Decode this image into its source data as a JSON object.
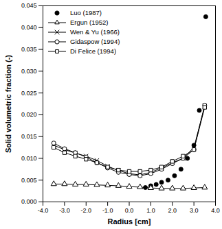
{
  "chart_data": {
    "type": "line",
    "x_label": "Radius [cm]",
    "y_label": "Solid volumetric fraction (-)",
    "xlim": [
      -4.0,
      4.0
    ],
    "xticks": [
      {
        "value": -4,
        "label": "-4.0"
      },
      {
        "value": -3,
        "label": "-3.0"
      },
      {
        "value": -2,
        "label": "-2.0"
      },
      {
        "value": -1,
        "label": "-1.0"
      },
      {
        "value": 0,
        "label": "0.0"
      },
      {
        "value": 1,
        "label": "1.0"
      },
      {
        "value": 2,
        "label": "2.0"
      },
      {
        "value": 3,
        "label": "3.0"
      },
      {
        "value": 4,
        "label": "4.0"
      }
    ],
    "ylim": [
      0,
      0.045
    ],
    "yticks": [
      {
        "value": 0,
        "label": "0.000"
      },
      0.005,
      {
        "value": 0.01,
        "label": "0.010"
      },
      0.015,
      {
        "value": 0.02,
        "label": "0.020"
      },
      0.025,
      {
        "value": 0.03,
        "label": "0.030"
      },
      0.035,
      {
        "value": 0.04,
        "label": "0.040"
      },
      0.045
    ],
    "legend": "upper left",
    "grid": false,
    "series": [
      {
        "name": "Luo (1987)",
        "type": "scatter",
        "color": "#000000",
        "marker": "filled_circle",
        "line_style": "none",
        "x": [
          0.75,
          1.0,
          1.25,
          1.5,
          1.8,
          2.1,
          2.4,
          2.7,
          3.0,
          3.25,
          3.55
        ],
        "values": [
          0.0033,
          0.0037,
          0.004,
          0.0045,
          0.005,
          0.006,
          0.0075,
          0.01,
          0.013,
          0.021,
          0.0425
        ]
      },
      {
        "name": "Ergun (1952)",
        "type": "line",
        "color": "#000000",
        "marker": "open_triangle",
        "line_style": "solid",
        "x": [
          -3.5,
          -3.0,
          -2.5,
          -2.0,
          -1.5,
          -1.0,
          -0.5,
          0.0,
          0.5,
          1.0,
          1.5,
          2.0,
          2.5,
          3.0,
          3.5
        ],
        "values": [
          0.0041,
          0.0041,
          0.004,
          0.004,
          0.0039,
          0.0038,
          0.0037,
          0.0035,
          0.0034,
          0.0032,
          0.0031,
          0.0031,
          0.0031,
          0.0032,
          0.0033
        ]
      },
      {
        "name": "Wen & Yu (1966)",
        "type": "line",
        "color": "#000000",
        "marker": "cross",
        "line_style": "solid",
        "x": [
          -3.5,
          -3.0,
          -2.5,
          -2.0,
          -1.5,
          -1.0,
          -0.5,
          0.0,
          0.5,
          1.0,
          1.5,
          2.0,
          2.5,
          3.0,
          3.5
        ],
        "values": [
          0.013,
          0.012,
          0.0112,
          0.0105,
          0.0095,
          0.0082,
          0.0072,
          0.0065,
          0.0062,
          0.0068,
          0.0078,
          0.009,
          0.01,
          0.0125,
          0.022
        ]
      },
      {
        "name": "Gidaspow (1994)",
        "type": "line",
        "color": "#000000",
        "marker": "open_circle",
        "line_style": "solid",
        "x": [
          -3.5,
          -3.0,
          -2.5,
          -2.0,
          -1.5,
          -1.0,
          -0.5,
          0.0,
          0.5,
          1.0,
          1.5,
          2.0,
          2.5,
          3.0,
          3.5
        ],
        "values": [
          0.0135,
          0.0122,
          0.0113,
          0.0103,
          0.009,
          0.0078,
          0.0068,
          0.0063,
          0.006,
          0.0065,
          0.0075,
          0.0088,
          0.01,
          0.012,
          0.0222
        ]
      },
      {
        "name": "Di Felice (1994)",
        "type": "line",
        "color": "#000000",
        "marker": "open_square",
        "line_style": "solid",
        "x": [
          -3.5,
          -3.0,
          -2.5,
          -2.0,
          -1.5,
          -1.0,
          -0.5,
          0.0,
          0.5,
          1.0,
          1.5,
          2.0,
          2.5,
          3.0,
          3.5
        ],
        "values": [
          0.0125,
          0.0113,
          0.0105,
          0.0098,
          0.009,
          0.008,
          0.0073,
          0.007,
          0.007,
          0.0073,
          0.008,
          0.0093,
          0.0105,
          0.012,
          0.0217
        ]
      }
    ]
  }
}
